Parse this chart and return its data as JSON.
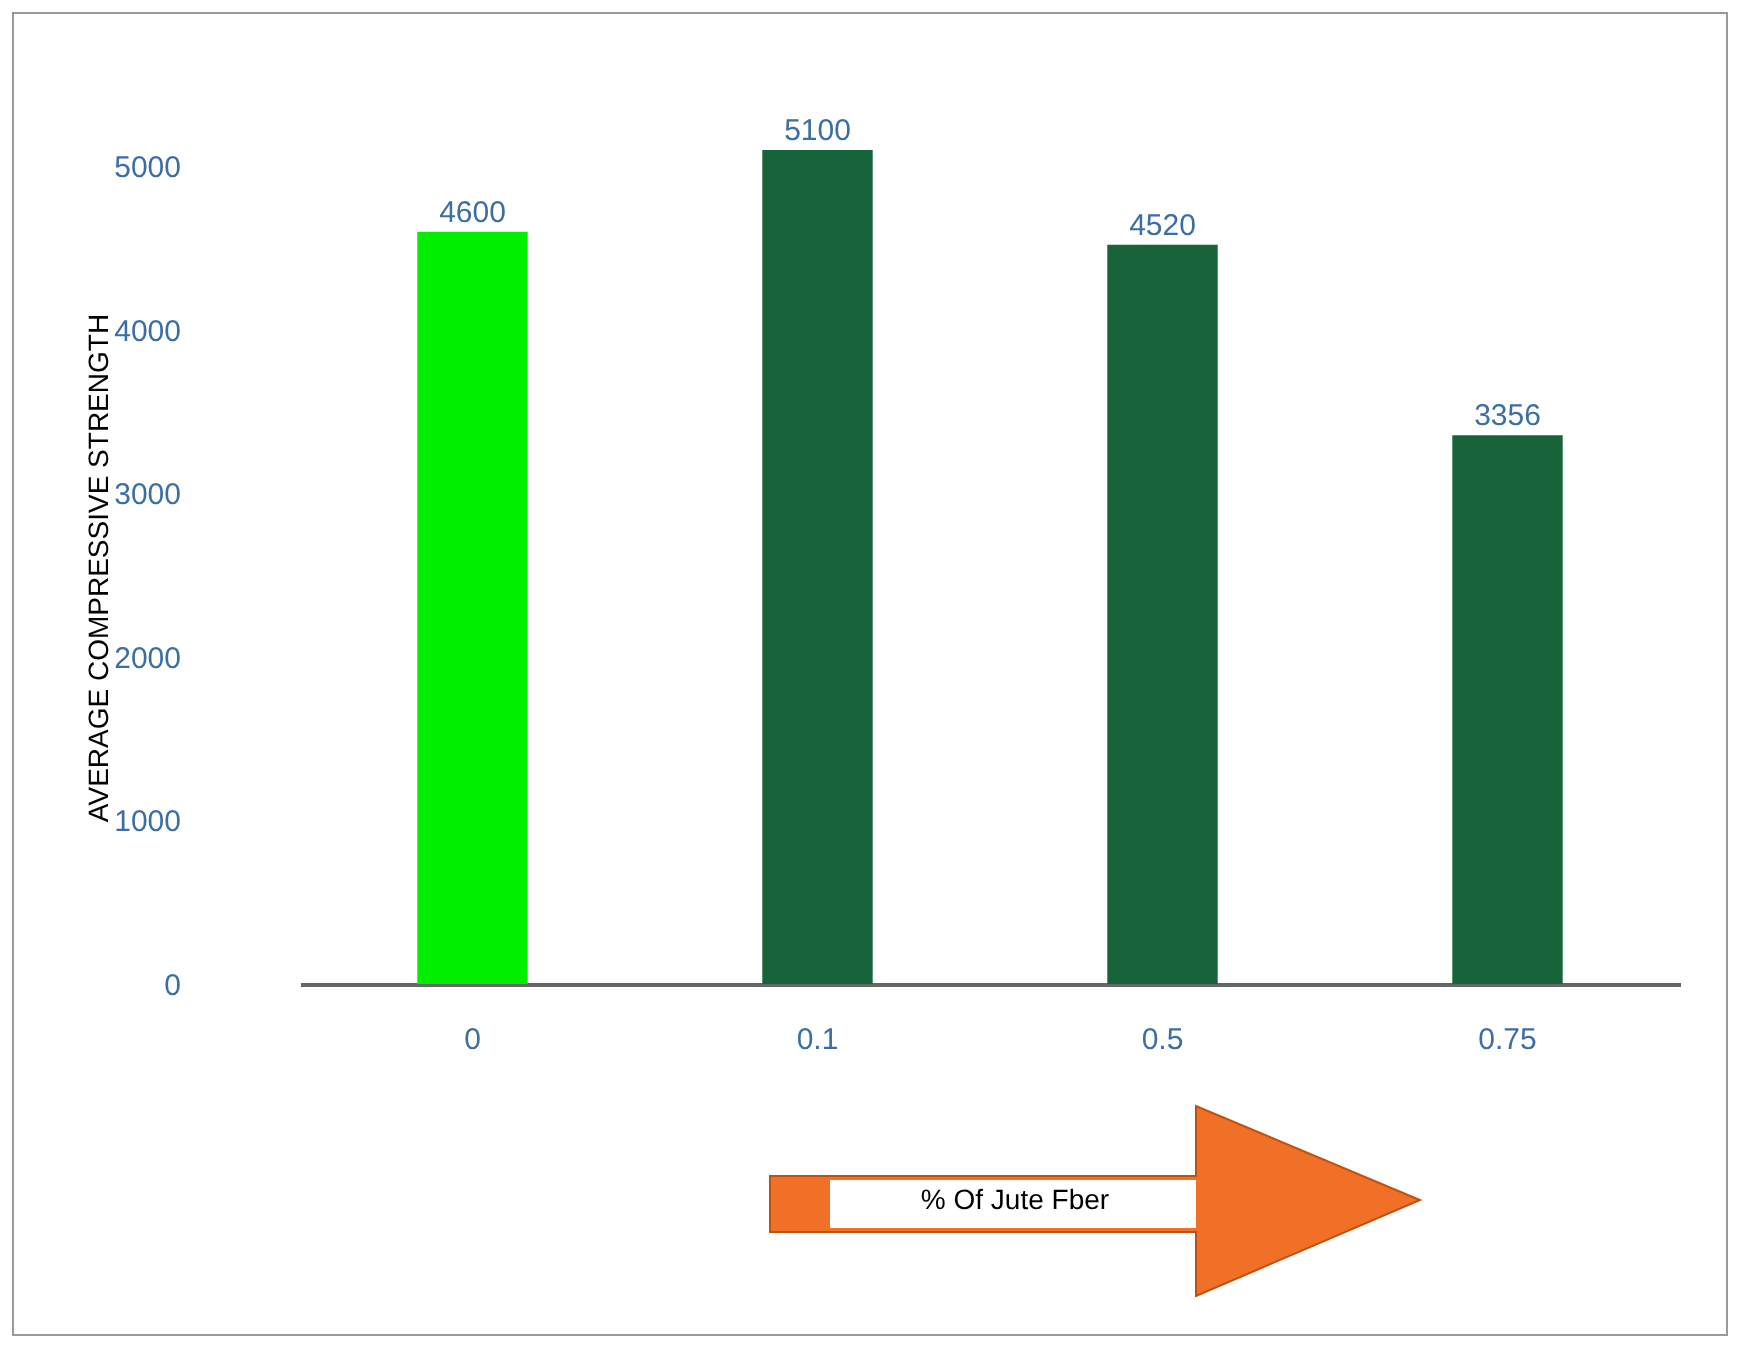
{
  "chart_data": {
    "type": "bar",
    "ylabel": "AVERAGE COMPRESSIVE STRENGTH",
    "xlabel": "% Of Jute Fber",
    "categories": [
      "0",
      "0.1",
      "0.5",
      "0.75"
    ],
    "values": [
      4600,
      5100,
      4520,
      3356
    ],
    "colors": [
      "#00ee00",
      "#17643a",
      "#17643a",
      "#17643a"
    ],
    "ylim": [
      0,
      5100
    ],
    "yticks": [
      0,
      1000,
      2000,
      3000,
      4000,
      5000
    ],
    "data_labels": true,
    "grid": false
  }
}
